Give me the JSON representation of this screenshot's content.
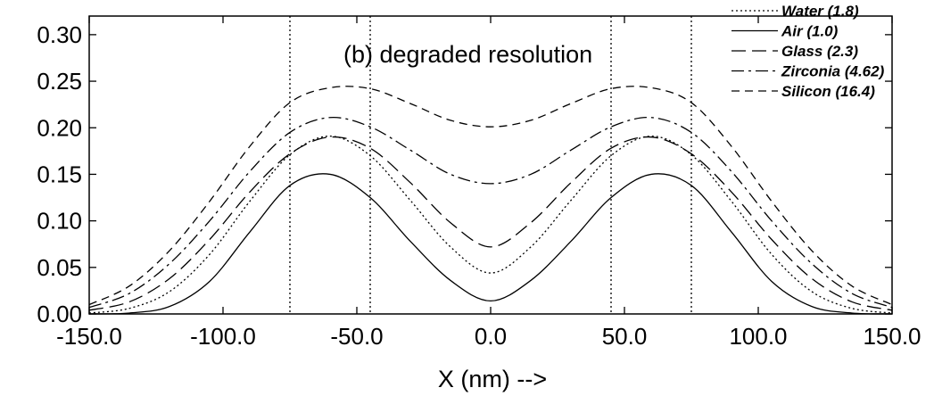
{
  "chart_data": {
    "type": "line",
    "title": "",
    "annotation": "(b) degraded resolution",
    "xlabel": "X (nm) -->",
    "ylabel": "",
    "xlim": [
      -150,
      150
    ],
    "ylim": [
      0,
      0.32
    ],
    "xticks": [
      -150,
      -100,
      -50,
      0,
      50,
      100,
      150
    ],
    "xtick_labels": [
      "-150.0",
      "-100.0",
      "-50.0",
      "0.0",
      "50.0",
      "100.0",
      "150.0"
    ],
    "yticks": [
      0,
      0.05,
      0.1,
      0.15,
      0.2,
      0.25,
      0.3
    ],
    "ytick_labels": [
      "0.00",
      "0.05",
      "0.10",
      "0.15",
      "0.20",
      "0.25",
      "0.30"
    ],
    "grid": false,
    "legend_position": "top-right",
    "vertical_lines": [
      -75,
      -45,
      45,
      75
    ],
    "x": [
      -150,
      -135,
      -120,
      -105,
      -90,
      -75,
      -60,
      -45,
      -30,
      -15,
      0,
      15,
      30,
      45,
      60,
      75,
      90,
      105,
      120,
      135,
      150
    ],
    "series": [
      {
        "name": "Water (1.8)",
        "dash": "dotted",
        "values": [
          0.001,
          0.006,
          0.024,
          0.064,
          0.121,
          0.171,
          0.191,
          0.17,
          0.122,
          0.072,
          0.044,
          0.072,
          0.122,
          0.17,
          0.191,
          0.171,
          0.121,
          0.064,
          0.024,
          0.006,
          0.001
        ]
      },
      {
        "name": "Air (1.0)",
        "dash": "solid",
        "values": [
          0.0,
          0.001,
          0.008,
          0.035,
          0.088,
          0.138,
          0.15,
          0.125,
          0.078,
          0.036,
          0.014,
          0.036,
          0.078,
          0.125,
          0.15,
          0.138,
          0.088,
          0.035,
          0.008,
          0.001,
          0.0
        ]
      },
      {
        "name": "Glass (2.3)",
        "dash": "long-dash",
        "values": [
          0.004,
          0.013,
          0.038,
          0.08,
          0.131,
          0.172,
          0.19,
          0.178,
          0.141,
          0.098,
          0.072,
          0.098,
          0.141,
          0.178,
          0.19,
          0.172,
          0.131,
          0.08,
          0.038,
          0.013,
          0.004
        ]
      },
      {
        "name": "Zirconia (4.62)",
        "dash": "dash-dot",
        "values": [
          0.007,
          0.022,
          0.054,
          0.1,
          0.153,
          0.195,
          0.211,
          0.201,
          0.176,
          0.15,
          0.14,
          0.15,
          0.176,
          0.201,
          0.211,
          0.195,
          0.153,
          0.1,
          0.054,
          0.022,
          0.007
        ]
      },
      {
        "name": "Silicon (16.4)",
        "dash": "dashed",
        "values": [
          0.01,
          0.03,
          0.068,
          0.121,
          0.18,
          0.227,
          0.243,
          0.242,
          0.226,
          0.208,
          0.201,
          0.208,
          0.226,
          0.242,
          0.243,
          0.227,
          0.18,
          0.121,
          0.068,
          0.03,
          0.01
        ]
      }
    ]
  }
}
